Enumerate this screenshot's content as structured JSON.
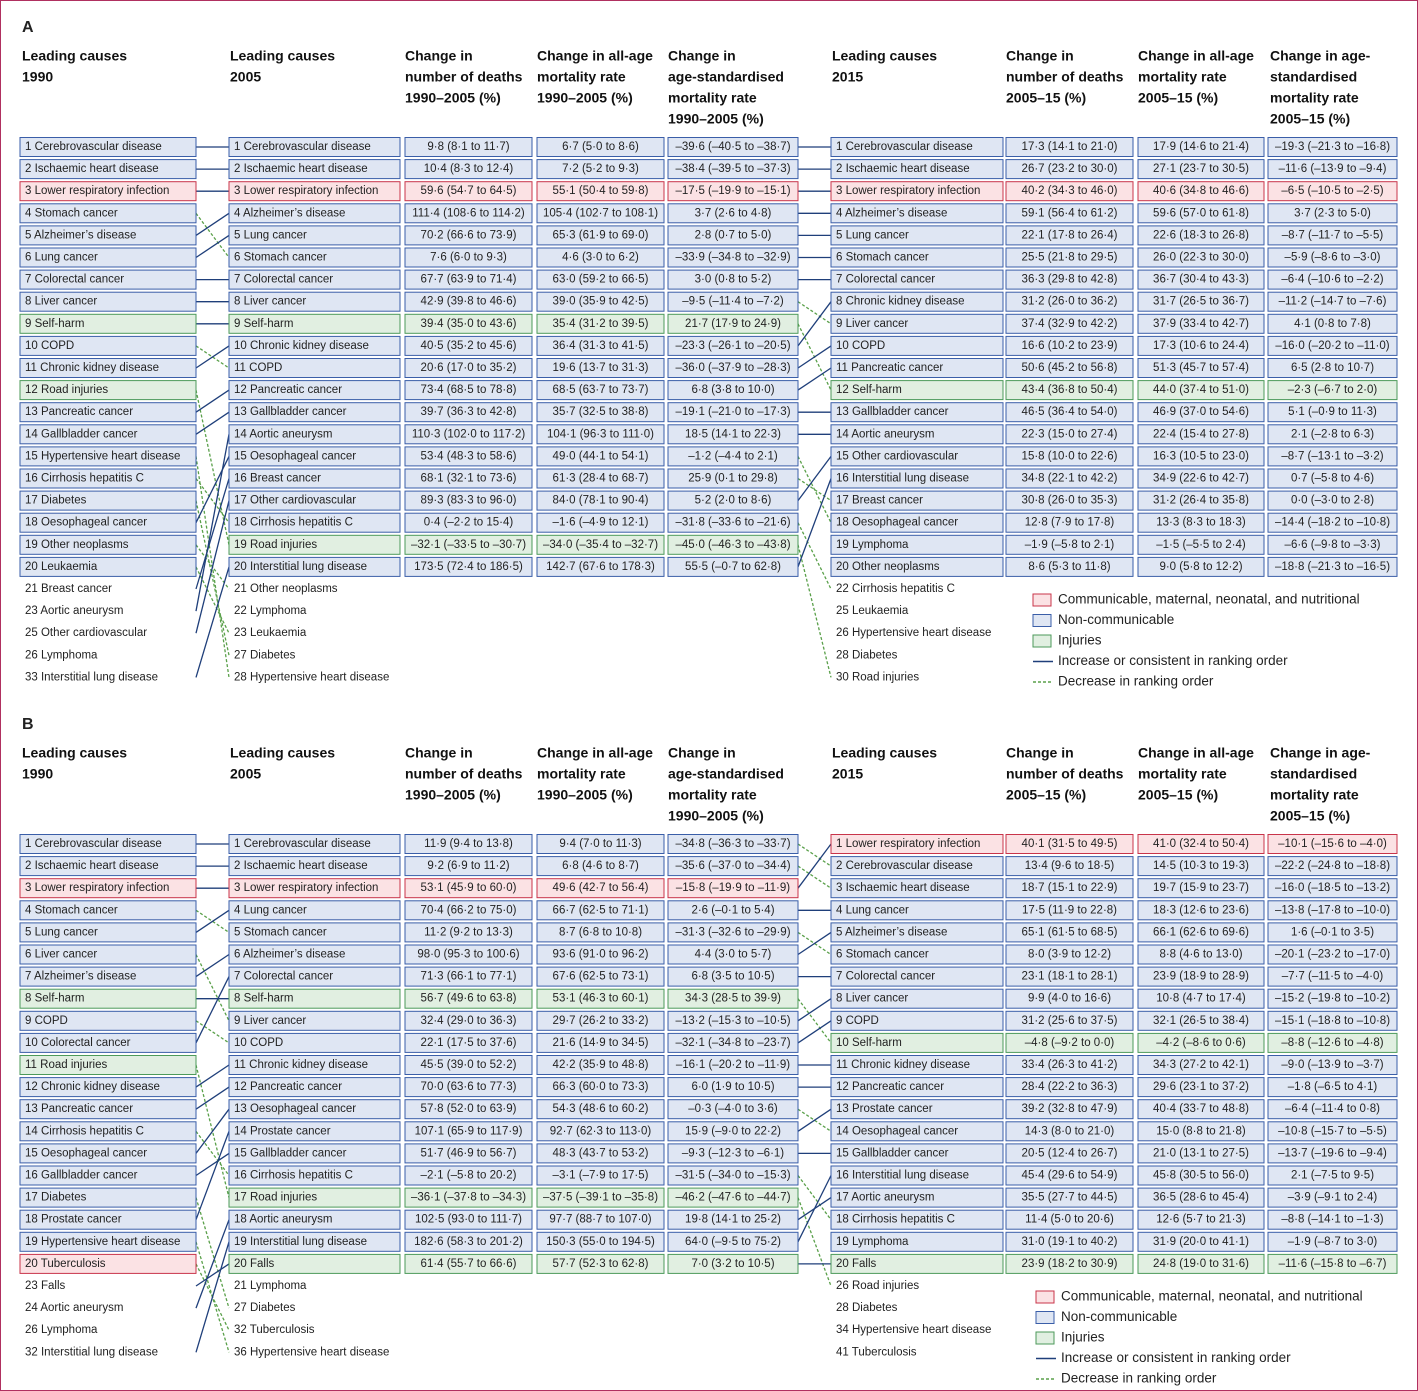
{
  "legend": [
    {
      "name": "Communicable, maternal, neonatal, and nutritional",
      "fill": "#fbe2e4",
      "stroke": "#c8344a"
    },
    {
      "name": "Non-communicable",
      "fill": "#dfe6f3",
      "stroke": "#3a5ea8"
    },
    {
      "name": "Injuries",
      "fill": "#e1efe1",
      "stroke": "#4c9a5a"
    },
    {
      "name": "Increase or consistent in ranking order",
      "color": "#1f3f7a",
      "dash": false
    },
    {
      "name": "Decrease in ranking order",
      "color": "#5aa04a",
      "dash": true
    }
  ],
  "panels": [
    {
      "label": "A",
      "headers": [
        [
          "Leading causes",
          "1990"
        ],
        [
          "Leading causes",
          "2005"
        ],
        [
          "Change in",
          "number of deaths",
          "1990–2005 (%)"
        ],
        [
          "Change in all-age",
          "mortality rate",
          "1990–2005 (%)"
        ],
        [
          "Change in",
          "age-standardised",
          "mortality rate",
          "1990–2005 (%)"
        ],
        [
          "Leading causes",
          "2015"
        ],
        [
          "Change in",
          "number of deaths",
          "2005–15 (%)"
        ],
        [
          "Change in all-age",
          "mortality rate",
          "2005–15 (%)"
        ],
        [
          "Change in age-",
          "standardised",
          "mortality rate",
          "2005–15 (%)"
        ]
      ],
      "columns": [
        {
          "ranked": [
            "1 Cerebrovascular disease",
            "2 Ischaemic heart disease",
            "3 Lower respiratory infection",
            "4 Stomach cancer",
            "5 Alzheimer’s disease",
            "6 Lung cancer",
            "7 Colorectal cancer",
            "8 Liver cancer",
            "9 Self-harm",
            "10 COPD",
            "11 Chronic kidney disease",
            "12 Road injuries",
            "13 Pancreatic cancer",
            "14 Gallbladder cancer",
            "15 Hypertensive heart disease",
            "16 Cirrhosis hepatitis C",
            "17 Diabetes",
            "18 Oesophageal cancer",
            "19 Other neoplasms",
            "20 Leukaemia"
          ],
          "colors": [
            "#dfe6f3",
            "#dfe6f3",
            "#fbe2e4",
            "#dfe6f3",
            "#dfe6f3",
            "#dfe6f3",
            "#dfe6f3",
            "#dfe6f3",
            "#e1efe1",
            "#dfe6f3",
            "#dfe6f3",
            "#e1efe1",
            "#dfe6f3",
            "#dfe6f3",
            "#dfe6f3",
            "#dfe6f3",
            "#dfe6f3",
            "#dfe6f3",
            "#dfe6f3",
            "#dfe6f3"
          ],
          "others": [
            "21 Breast cancer",
            "23 Aortic aneurysm",
            "25 Other cardiovascular",
            "26 Lymphoma",
            "33 Interstitial lung disease"
          ]
        },
        {
          "ranked": [
            "1 Cerebrovascular disease",
            "2 Ischaemic heart disease",
            "3 Lower respiratory infection",
            "4 Alzheimer’s disease",
            "5 Lung cancer",
            "6 Stomach cancer",
            "7 Colorectal cancer",
            "8 Liver cancer",
            "9 Self-harm",
            "10 Chronic kidney disease",
            "11 COPD",
            "12 Pancreatic cancer",
            "13 Gallbladder cancer",
            "14 Aortic aneurysm",
            "15 Oesophageal cancer",
            "16 Breast cancer",
            "17 Other cardiovascular",
            "18 Cirrhosis hepatitis C",
            "19 Road injuries",
            "20 Interstitial lung disease"
          ],
          "colors": [
            "#dfe6f3",
            "#dfe6f3",
            "#fbe2e4",
            "#dfe6f3",
            "#dfe6f3",
            "#dfe6f3",
            "#dfe6f3",
            "#dfe6f3",
            "#e1efe1",
            "#dfe6f3",
            "#dfe6f3",
            "#dfe6f3",
            "#dfe6f3",
            "#dfe6f3",
            "#dfe6f3",
            "#dfe6f3",
            "#dfe6f3",
            "#dfe6f3",
            "#e1efe1",
            "#dfe6f3"
          ],
          "others": [
            "21 Other neoplasms",
            "22 Lymphoma",
            "23 Leukaemia",
            "27 Diabetes",
            "28 Hypertensive heart disease"
          ]
        },
        {
          "ranked": [
            "1 Cerebrovascular disease",
            "2 Ischaemic heart disease",
            "3 Lower respiratory infection",
            "4 Alzheimer’s disease",
            "5 Lung cancer",
            "6 Stomach cancer",
            "7 Colorectal cancer",
            "8 Chronic kidney disease",
            "9 Liver cancer",
            "10 COPD",
            "11 Pancreatic cancer",
            "12 Self-harm",
            "13 Gallbladder cancer",
            "14 Aortic aneurysm",
            "15 Other cardiovascular",
            "16 Interstitial lung disease",
            "17 Breast cancer",
            "18 Oesophageal cancer",
            "19 Lymphoma",
            "20 Other neoplasms"
          ],
          "colors": [
            "#dfe6f3",
            "#dfe6f3",
            "#fbe2e4",
            "#dfe6f3",
            "#dfe6f3",
            "#dfe6f3",
            "#dfe6f3",
            "#dfe6f3",
            "#dfe6f3",
            "#dfe6f3",
            "#dfe6f3",
            "#e1efe1",
            "#dfe6f3",
            "#dfe6f3",
            "#dfe6f3",
            "#dfe6f3",
            "#dfe6f3",
            "#dfe6f3",
            "#dfe6f3",
            "#dfe6f3"
          ],
          "others": [
            "22 Cirrhosis hepatitis C",
            "25 Leukaemia",
            "26 Hypertensive heart disease",
            "28 Diabetes",
            "30 Road injuries"
          ]
        }
      ],
      "changes_1990_2005": [
        [
          "9·8 (8·1 to 11·7)",
          "10·4 (8·3 to 12·4)",
          "59·6 (54·7 to 64·5)",
          "111·4 (108·6 to 114·2)",
          "70·2 (66·6 to 73·9)",
          "7·6 (6·0 to 9·3)",
          "67·7 (63·9 to 71·4)",
          "42·9 (39·8 to 46·6)",
          "39·4 (35·0 to 43·6)",
          "40·5 (35·2 to 45·6)",
          "20·6 (17·0 to 35·2)",
          "73·4 (68·5 to 78·8)",
          "39·7 (36·3 to 42·8)",
          "110·3 (102·0 to 117·2)",
          "53·4 (48·3 to 58·6)",
          "68·1 (32·1 to 73·6)",
          "89·3 (83·3 to 96·0)",
          "0·4 (–2·2 to 15·4)",
          "–32·1 (–33·5 to –30·7)",
          "173·5 (72·4 to 186·5)"
        ],
        [
          "6·7 (5·0 to 8·6)",
          "7·2 (5·2 to 9·3)",
          "55·1 (50·4 to 59·8)",
          "105·4 (102·7 to 108·1)",
          "65·3 (61·9 to 69·0)",
          "4·6 (3·0 to 6·2)",
          "63·0 (59·2 to 66·5)",
          "39·0 (35·9 to 42·5)",
          "35·4 (31·2 to 39·5)",
          "36·4 (31·3 to 41·5)",
          "19·6 (13·7 to 31·3)",
          "68·5 (63·7 to 73·7)",
          "35·7 (32·5 to 38·8)",
          "104·1 (96·3 to 111·0)",
          "49·0 (44·1 to 54·1)",
          "61·3 (28·4 to 68·7)",
          "84·0 (78·1 to 90·4)",
          "–1·6 (–4·9 to 12·1)",
          "–34·0 (–35·4 to –32·7)",
          "142·7 (67·6 to 178·3)"
        ],
        [
          "–39·6 (–40·5 to –38·7)",
          "–38·4 (–39·5 to –37·3)",
          "–17·5 (–19·9 to –15·1)",
          "3·7 (2·6 to 4·8)",
          "2·8 (0·7 to 5·0)",
          "–33·9 (–34·8 to –32·9)",
          "3·0 (0·8 to 5·2)",
          "–9·5 (–11·4 to –7·2)",
          "21·7 (17·9 to 24·9)",
          "–23·3 (–26·1 to –20·5)",
          "–36·0 (–37·9 to –28·3)",
          "6·8 (3·8 to 10·0)",
          "–19·1 (–21·0 to –17·3)",
          "18·5 (14·1 to 22·3)",
          "–1·2 (–4·4 to 2·1)",
          "25·9 (0·1 to 29·8)",
          "5·2 (2·0 to 8·6)",
          "–31·8 (–33·6 to –21·6)",
          "–45·0 (–46·3 to –43·8)",
          "55·5 (–0·7 to 62·8)"
        ]
      ],
      "changes_2005_15": [
        [
          "17·3 (14·1 to 21·0)",
          "26·7 (23·2 to 30·0)",
          "40·2 (34·3 to 46·0)",
          "59·1 (56·4 to 61·2)",
          "22·1 (17·8 to 26·4)",
          "25·5 (21·8 to 29·5)",
          "36·3 (29·8 to 42·8)",
          "31·2 (26·0 to 36·2)",
          "37·4 (32·9 to 42·2)",
          "16·6 (10·2 to 23·9)",
          "50·6 (45·2 to 56·8)",
          "43·4 (36·8 to 50·4)",
          "46·5 (36·4 to 54·0)",
          "22·3 (15·0 to 27·4)",
          "15·8 (10·0 to 22·6)",
          "34·8 (22·1 to 42·2)",
          "30·8 (26·0 to 35·3)",
          "12·8 (7·9 to 17·8)",
          "–1·9 (–5·8 to 2·1)",
          "8·6 (5·3 to 11·8)"
        ],
        [
          "17·9 (14·6 to 21·4)",
          "27·1 (23·7 to 30·5)",
          "40·6 (34·8 to 46·6)",
          "59·6 (57·0 to 61·8)",
          "22·6 (18·3 to 26·8)",
          "26·0 (22·3 to 30·0)",
          "36·7 (30·4 to 43·3)",
          "31·7 (26·5 to 36·7)",
          "37·9 (33·4 to 42·7)",
          "17·3 (10·6 to 24·4)",
          "51·3 (45·7 to 57·4)",
          "44·0 (37·4 to 51·0)",
          "46·9 (37·0 to 54·6)",
          "22·4 (15·4 to 27·8)",
          "16·3 (10·5 to 23·0)",
          "34·9 (22·6 to 42·7)",
          "31·2 (26·4 to 35·8)",
          "13·3 (8·3 to 18·3)",
          "–1·5 (–5·5 to 2·4)",
          "9·0 (5·8 to 12·2)"
        ],
        [
          "–19·3 (–21·3 to –16·8)",
          "–11·6 (–13·9 to –9·4)",
          "–6·5 (–10·5 to –2·5)",
          "3·7 (2·3 to 5·0)",
          "–8·7 (–11·7 to –5·5)",
          "–5·9 (–8·6 to –3·0)",
          "–6·4 (–10·6 to –2·2)",
          "–11·2 (–14·7 to –7·6)",
          "4·1 (0·8 to 7·8)",
          "–16·0 (–20·2 to –11·0)",
          "6·5 (2·8 to 10·7)",
          "–2·3 (–6·7 to 2·0)",
          "5·1 (–0·9 to 11·3)",
          "2·1 (–2·8 to 6·3)",
          "–8·7 (–13·1 to –3·2)",
          "0·7 (–5·8 to 4·6)",
          "0·0 (–3·0 to 2·8)",
          "–14·4 (–18·2 to –10·8)",
          "–6·6 (–9·8 to –3·3)",
          "–18·8 (–21·3 to –16·5)"
        ]
      ]
    },
    {
      "label": "B",
      "headers": [
        [
          "Leading causes",
          "1990"
        ],
        [
          "Leading causes",
          "2005"
        ],
        [
          "Change in",
          "number of deaths",
          "1990–2005 (%)"
        ],
        [
          "Change in all-age",
          "mortality rate",
          "1990–2005 (%)"
        ],
        [
          "Change in",
          "age-standardised",
          "mortality rate",
          "1990–2005 (%)"
        ],
        [
          "Leading causes",
          "2015"
        ],
        [
          "Change in",
          "number of deaths",
          "2005–15 (%)"
        ],
        [
          "Change in all-age",
          "mortality rate",
          "2005–15 (%)"
        ],
        [
          "Change in age-",
          "standardised",
          "mortality rate",
          "2005–15 (%)"
        ]
      ],
      "columns": [
        {
          "ranked": [
            "1 Cerebrovascular disease",
            "2 Ischaemic heart disease",
            "3 Lower respiratory infection",
            "4 Stomach cancer",
            "5 Lung cancer",
            "6 Liver cancer",
            "7 Alzheimer’s disease",
            "8 Self-harm",
            "9 COPD",
            "10 Colorectal cancer",
            "11 Road injuries",
            "12 Chronic kidney disease",
            "13 Pancreatic cancer",
            "14 Cirrhosis hepatitis C",
            "15 Oesophageal cancer",
            "16 Gallbladder cancer",
            "17 Diabetes",
            "18 Prostate cancer",
            "19 Hypertensive heart disease",
            "20 Tuberculosis"
          ],
          "colors": [
            "#dfe6f3",
            "#dfe6f3",
            "#fbe2e4",
            "#dfe6f3",
            "#dfe6f3",
            "#dfe6f3",
            "#dfe6f3",
            "#e1efe1",
            "#dfe6f3",
            "#dfe6f3",
            "#e1efe1",
            "#dfe6f3",
            "#dfe6f3",
            "#dfe6f3",
            "#dfe6f3",
            "#dfe6f3",
            "#dfe6f3",
            "#dfe6f3",
            "#dfe6f3",
            "#fbe2e4"
          ],
          "others": [
            "23 Falls",
            "24 Aortic aneurysm",
            "26 Lymphoma",
            "32 Interstitial lung disease"
          ]
        },
        {
          "ranked": [
            "1 Cerebrovascular disease",
            "2 Ischaemic heart disease",
            "3 Lower respiratory infection",
            "4 Lung cancer",
            "5 Stomach cancer",
            "6 Alzheimer’s disease",
            "7 Colorectal cancer",
            "8 Self-harm",
            "9 Liver cancer",
            "10 COPD",
            "11 Chronic kidney disease",
            "12 Pancreatic cancer",
            "13 Oesophageal cancer",
            "14 Prostate cancer",
            "15 Gallbladder cancer",
            "16 Cirrhosis hepatitis C",
            "17 Road injuries",
            "18 Aortic aneurysm",
            "19 Interstitial lung disease",
            "20 Falls"
          ],
          "colors": [
            "#dfe6f3",
            "#dfe6f3",
            "#fbe2e4",
            "#dfe6f3",
            "#dfe6f3",
            "#dfe6f3",
            "#dfe6f3",
            "#e1efe1",
            "#dfe6f3",
            "#dfe6f3",
            "#dfe6f3",
            "#dfe6f3",
            "#dfe6f3",
            "#dfe6f3",
            "#dfe6f3",
            "#dfe6f3",
            "#e1efe1",
            "#dfe6f3",
            "#dfe6f3",
            "#e1efe1"
          ],
          "others": [
            "21 Lymphoma",
            "27 Diabetes",
            "32 Tuberculosis",
            "36 Hypertensive heart disease"
          ]
        },
        {
          "ranked": [
            "1 Lower respiratory infection",
            "2 Cerebrovascular disease",
            "3 Ischaemic heart disease",
            "4 Lung cancer",
            "5 Alzheimer’s disease",
            "6 Stomach cancer",
            "7 Colorectal cancer",
            "8 Liver cancer",
            "9 COPD",
            "10 Self-harm",
            "11 Chronic kidney disease",
            "12 Pancreatic cancer",
            "13 Prostate cancer",
            "14 Oesophageal cancer",
            "15 Gallbladder cancer",
            "16 Interstitial lung disease",
            "17 Aortic aneurysm",
            "18 Cirrhosis hepatitis C",
            "19 Lymphoma",
            "20 Falls"
          ],
          "colors": [
            "#fbe2e4",
            "#dfe6f3",
            "#dfe6f3",
            "#dfe6f3",
            "#dfe6f3",
            "#dfe6f3",
            "#dfe6f3",
            "#dfe6f3",
            "#dfe6f3",
            "#e1efe1",
            "#dfe6f3",
            "#dfe6f3",
            "#dfe6f3",
            "#dfe6f3",
            "#dfe6f3",
            "#dfe6f3",
            "#dfe6f3",
            "#dfe6f3",
            "#dfe6f3",
            "#e1efe1"
          ],
          "others": [
            "26 Road injuries",
            "28 Diabetes",
            "34 Hypertensive heart disease",
            "41 Tuberculosis"
          ]
        }
      ],
      "changes_1990_2005": [
        [
          "11·9 (9·4 to 13·8)",
          "9·2 (6·9 to 11·2)",
          "53·1 (45·9 to 60·0)",
          "70·4 (66·2 to 75·0)",
          "11·2 (9·2 to 13·3)",
          "98·0 (95·3 to 100·6)",
          "71·3 (66·1 to 77·1)",
          "56·7 (49·6 to 63·8)",
          "32·4 (29·0 to 36·3)",
          "22·1 (17·5 to 37·6)",
          "45·5 (39·0 to 52·2)",
          "70·0 (63·6 to 77·3)",
          "57·8 (52·0 to 63·9)",
          "107·1 (65·9 to 117·9)",
          "51·7 (46·9 to 56·7)",
          "–2·1 (–5·8 to 20·2)",
          "–36·1 (–37·8 to –34·3)",
          "102·5 (93·0 to 111·7)",
          "182·6 (58·3 to 201·2)",
          "61·4 (55·7 to 66·6)"
        ],
        [
          "9·4 (7·0 to 11·3)",
          "6·8 (4·6 to 8·7)",
          "49·6 (42·7 to 56·4)",
          "66·7 (62·5 to 71·1)",
          "8·7 (6·8 to 10·8)",
          "93·6 (91·0 to 96·2)",
          "67·6 (62·5 to 73·1)",
          "53·1 (46·3 to 60·1)",
          "29·7 (26·2 to 33·2)",
          "21·6 (14·9 to 34·5)",
          "42·2 (35·9 to 48·8)",
          "66·3 (60·0 to 73·3)",
          "54·3 (48·6 to 60·2)",
          "92·7 (62·3 to 113·0)",
          "48·3 (43·7 to 53·2)",
          "–3·1 (–7·9 to 17·5)",
          "–37·5 (–39·1 to –35·8)",
          "97·7 (88·7 to 107·0)",
          "150·3 (55·0 to 194·5)",
          "57·7 (52·3 to 62·8)"
        ],
        [
          "–34·8 (–36·3 to –33·7)",
          "–35·6 (–37·0 to –34·4)",
          "–15·8 (–19·9 to –11·9)",
          "2·6 (–0·1 to 5·4)",
          "–31·3 (–32·6 to –29·9)",
          "4·4 (3·0 to 5·7)",
          "6·8 (3·5 to 10·5)",
          "34·3 (28·5 to 39·9)",
          "–13·2 (–15·3 to –10·5)",
          "–32·1 (–34·8 to –23·7)",
          "–16·1 (–20·2 to –11·9)",
          "6·0 (1·9 to 10·5)",
          "–0·3 (–4·0 to 3·6)",
          "15·9 (–9·0 to 22·2)",
          "–9·3 (–12·3 to –6·1)",
          "–31·5 (–34·0 to –15·3)",
          "–46·2 (–47·6 to –44·7)",
          "19·8 (14·1 to 25·2)",
          "64·0 (–9·5 to 75·2)",
          "7·0 (3·2 to 10·5)"
        ]
      ],
      "changes_2005_15": [
        [
          "40·1 (31·5 to 49·5)",
          "13·4 (9·6 to 18·5)",
          "18·7 (15·1 to 22·9)",
          "17·5 (11·9 to 22·8)",
          "65·1 (61·5 to 68·5)",
          "8·0 (3·9 to 12·2)",
          "23·1 (18·1 to 28·1)",
          "9·9 (4·0 to 16·6)",
          "31·2 (25·6 to 37·5)",
          "–4·8 (–9·2 to 0·0)",
          "33·4 (26·3 to 41·2)",
          "28·4 (22·2 to 36·3)",
          "39·2 (32·8 to 47·9)",
          "14·3 (8·0 to 21·0)",
          "20·5 (12·4 to 26·7)",
          "45·4 (29·6 to 54·9)",
          "35·5 (27·7 to 44·5)",
          "11·4 (5·0 to 20·6)",
          "31·0 (19·1 to 40·2)",
          "23·9 (18·2 to 30·9)"
        ],
        [
          "41·0 (32·4 to 50·4)",
          "14·5 (10·3 to 19·3)",
          "19·7 (15·9 to 23·7)",
          "18·3 (12·6 to 23·6)",
          "66·1 (62·6 to 69·6)",
          "8·8 (4·6 to 13·0)",
          "23·9 (18·9 to 28·9)",
          "10·8 (4·7 to 17·4)",
          "32·1 (26·5 to 38·4)",
          "–4·2 (–8·6 to 0·6)",
          "34·3 (27·2 to 42·1)",
          "29·6 (23·1 to 37·2)",
          "40·4 (33·7 to 48·8)",
          "15·0 (8·8 to 21·8)",
          "21·0 (13·1 to 27·5)",
          "45·8 (30·5 to 56·0)",
          "36·5 (28·6 to 45·4)",
          "12·6 (5·7 to 21·3)",
          "31·9 (20·0 to 41·1)",
          "24·8 (19·0 to 31·6)"
        ],
        [
          "–10·1 (–15·6 to –4·0)",
          "–22·2 (–24·8 to –18·8)",
          "–16·0 (–18·5 to –13·2)",
          "–13·8 (–17·8 to –10·0)",
          "1·6 (–0·1 to 3·5)",
          "–20·1 (–23·2 to –17·0)",
          "–7·7 (–11·5 to –4·0)",
          "–15·2 (–19·8 to –10·2)",
          "–15·1 (–18·8 to –10·8)",
          "–8·8 (–12·6 to –4·8)",
          "–9·0 (–13·9 to –3·7)",
          "–1·8 (–6·5 to 4·1)",
          "–6·4 (–11·4 to 0·8)",
          "–10·8 (–15·7 to –5·5)",
          "–13·7 (–19·6 to –9·4)",
          "2·1 (–7·5 to 9·5)",
          "–3·9 (–9·1 to 2·4)",
          "–8·8 (–14·1 to –1·3)",
          "–1·9 (–8·7 to 3·0)",
          "–11·6 (–15·8 to –6·7)"
        ]
      ]
    }
  ]
}
